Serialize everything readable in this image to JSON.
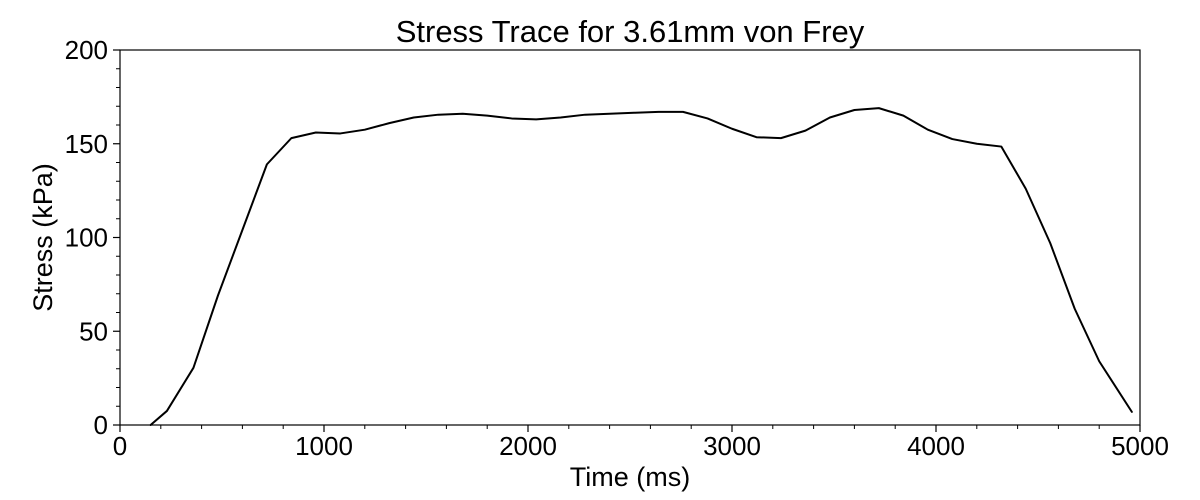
{
  "chart_data": {
    "type": "line",
    "title": "Stress Trace for 3.61mm von Frey",
    "xlabel": "Time (ms)",
    "ylabel": "Stress (kPa)",
    "xlim": [
      0,
      5000
    ],
    "ylim": [
      0,
      200
    ],
    "xticks": [
      0,
      1000,
      2000,
      3000,
      4000,
      5000
    ],
    "yticks": [
      0,
      50,
      100,
      150,
      200
    ],
    "xtick_labels": [
      "0",
      "1000",
      "2000",
      "3000",
      "4000",
      "5000"
    ],
    "ytick_labels": [
      "0",
      "50",
      "100",
      "150",
      "200"
    ],
    "grid": false,
    "series": [
      {
        "color": "#000000",
        "x": [
          150,
          230,
          360,
          480,
          600,
          720,
          840,
          960,
          1080,
          1200,
          1320,
          1440,
          1560,
          1680,
          1800,
          1920,
          2040,
          2160,
          2280,
          2400,
          2520,
          2640,
          2760,
          2880,
          3000,
          3120,
          3240,
          3360,
          3480,
          3600,
          3720,
          3840,
          3960,
          4080,
          4200,
          4320,
          4440,
          4560,
          4680,
          4800,
          4960
        ],
        "y": [
          0,
          7.5,
          30.5,
          69,
          104,
          139,
          153,
          156,
          155.5,
          157.5,
          161,
          164,
          165.5,
          166,
          165,
          163.5,
          163,
          164,
          165.5,
          166,
          166.5,
          167,
          167,
          163.5,
          158,
          153.5,
          153,
          157,
          164,
          168,
          169,
          165,
          157.5,
          152.5,
          150,
          148.5,
          126,
          97,
          62,
          34,
          7
        ]
      }
    ]
  }
}
